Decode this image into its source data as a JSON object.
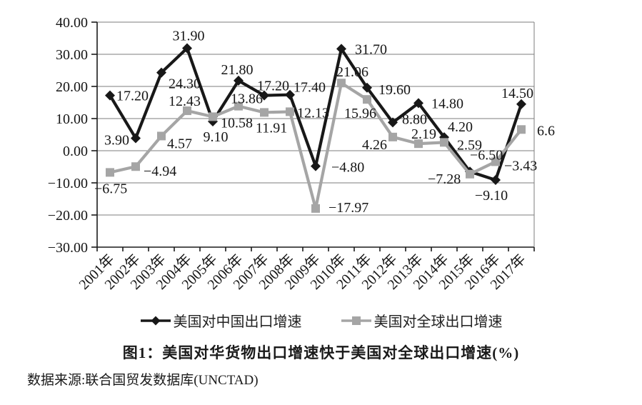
{
  "figure": {
    "caption": "图1：美国对华货物出口增速快于美国对全球出口增速(%)",
    "source": "数据来源:联合国贸发数据库(UNCTAD)"
  },
  "legend": {
    "position": "bottom",
    "items": [
      {
        "label": "美国对中国出口增速",
        "marker": "diamond",
        "color": "#181818"
      },
      {
        "label": "美国对全球出口增速",
        "marker": "square",
        "color": "#a5a5a5"
      }
    ]
  },
  "chart_data": {
    "type": "line",
    "title": "",
    "xlabel": "",
    "ylabel": "",
    "categories": [
      "2001年",
      "2002年",
      "2003年",
      "2004年",
      "2005年",
      "2006年",
      "2007年",
      "2008年",
      "2009年",
      "2010年",
      "2011年",
      "2012年",
      "2013年",
      "2014年",
      "2015年",
      "2016年",
      "2017年"
    ],
    "ylim": [
      -30,
      40
    ],
    "ytick_step": 10,
    "ytick_labels": [
      "40.00",
      "30.00",
      "20.00",
      "10.00",
      "0.00",
      "−10.00",
      "−20.00",
      "−30.00"
    ],
    "grid": "horizontal",
    "legend_position": "bottom",
    "series": [
      {
        "name": "美国对中国出口增速",
        "color": "#181818",
        "marker": "diamond",
        "values": [
          17.2,
          3.9,
          24.3,
          31.9,
          9.1,
          21.8,
          17.2,
          17.4,
          -4.8,
          31.7,
          19.6,
          8.8,
          14.8,
          4.2,
          -6.5,
          -9.1,
          14.5
        ],
        "labels": [
          "17.20",
          "3.90",
          "24.30",
          "31.90",
          "9.10",
          "21.80",
          "17.20",
          "17.40",
          "−4.80",
          "31.70",
          "19.60",
          "8.80",
          "14.80",
          "4.20",
          "−6.50",
          "−9.10",
          "14.50"
        ],
        "label_offsets": [
          [
            9,
            7,
            "start"
          ],
          [
            -9,
            9,
            "end"
          ],
          [
            10,
            22,
            "start"
          ],
          [
            2,
            -11,
            "middle"
          ],
          [
            4,
            28,
            "middle"
          ],
          [
            -2,
            -9,
            "middle"
          ],
          [
            -10,
            -7,
            "start"
          ],
          [
            5,
            -4,
            "start"
          ],
          [
            22,
            8,
            "start"
          ],
          [
            19,
            7,
            "start"
          ],
          [
            16,
            9,
            "start"
          ],
          [
            13,
            2,
            "start"
          ],
          [
            18,
            7,
            "start"
          ],
          [
            5,
            -8,
            "start"
          ],
          [
            0,
            -17,
            "start"
          ],
          [
            -6,
            28,
            "middle"
          ],
          [
            17,
            -9,
            "end"
          ]
        ]
      },
      {
        "name": "美国对全球出口增速",
        "color": "#a5a5a5",
        "marker": "square",
        "values": [
          -6.75,
          -4.94,
          4.57,
          12.43,
          10.58,
          13.86,
          11.91,
          12.13,
          -17.97,
          21.06,
          15.96,
          4.26,
          2.19,
          2.59,
          -7.28,
          -3.43,
          6.6
        ],
        "labels": [
          "−6.75",
          "−4.94",
          "4.57",
          "12.43",
          "10.58",
          "13.86",
          "11.91",
          "12.13",
          "−17.97",
          "21.06",
          "15.96",
          "4.26",
          "2.19",
          "2.59",
          "−7.28",
          "−3.43",
          "6.6"
        ],
        "label_offsets": [
          [
            -22,
            29,
            "start"
          ],
          [
            11,
            13,
            "start"
          ],
          [
            8,
            17,
            "start"
          ],
          [
            -26,
            -7,
            "start"
          ],
          [
            11,
            15,
            "start"
          ],
          [
            -11,
            -4,
            "start"
          ],
          [
            -12,
            28,
            "start"
          ],
          [
            10,
            8,
            "start"
          ],
          [
            18,
            5,
            "start"
          ],
          [
            -7,
            -9,
            "start"
          ],
          [
            -32,
            26,
            "start"
          ],
          [
            -43,
            17,
            "start"
          ],
          [
            -10,
            -7,
            "start"
          ],
          [
            18,
            10,
            "start"
          ],
          [
            -59,
            13,
            "start"
          ],
          [
            12,
            12,
            "start"
          ],
          [
            22,
            8,
            "start"
          ]
        ]
      }
    ]
  }
}
